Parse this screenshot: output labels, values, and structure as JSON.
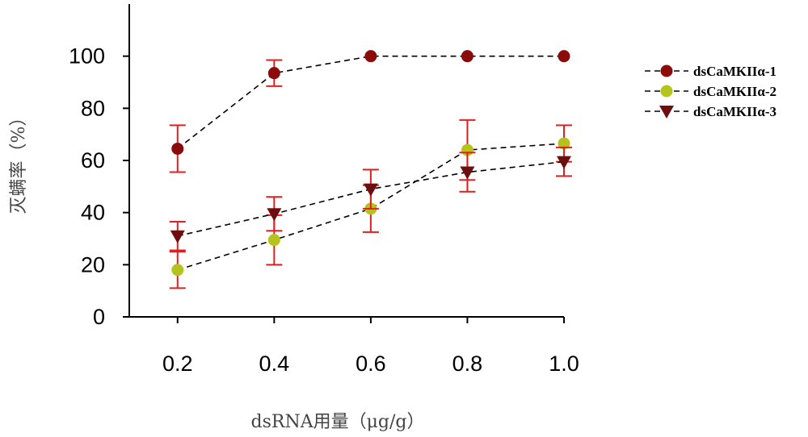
{
  "chart_data": {
    "type": "line",
    "title": "",
    "xlabel": "dsRNA用量（μg/g）",
    "ylabel": "灭螨率（%）",
    "x": [
      0.2,
      0.4,
      0.6,
      0.8,
      1.0
    ],
    "x_tick_labels": [
      "0.2",
      "0.4",
      "0.6",
      "0.8",
      "1.0"
    ],
    "xlim": [
      0.1,
      1.0
    ],
    "y_ticks": [
      0,
      20,
      40,
      60,
      80,
      100
    ],
    "y_tick_labels": [
      "0",
      "20",
      "40",
      "60",
      "80",
      "100"
    ],
    "ylim": [
      0,
      120
    ],
    "legend_position": "right",
    "series": [
      {
        "name": "dsCaMKIIα-1",
        "marker": "circle",
        "color": "#8b0a0a",
        "values": [
          64.5,
          93.5,
          100,
          100,
          100
        ],
        "errors": [
          9,
          5,
          0,
          0,
          0
        ]
      },
      {
        "name": "dsCaMKIIα-2",
        "marker": "circle",
        "color": "#b5c41c",
        "values": [
          18,
          29.5,
          41.5,
          64,
          66.5
        ],
        "errors": [
          7,
          9.5,
          9,
          11.5,
          7
        ]
      },
      {
        "name": "dsCaMKIIα-3",
        "marker": "triangle-down",
        "color": "#6b0f0f",
        "values": [
          31,
          39.5,
          49,
          55.5,
          59.5
        ],
        "errors": [
          5.5,
          6.5,
          7.5,
          7.5,
          5.5
        ]
      }
    ],
    "error_bar_color": "#e02020"
  }
}
